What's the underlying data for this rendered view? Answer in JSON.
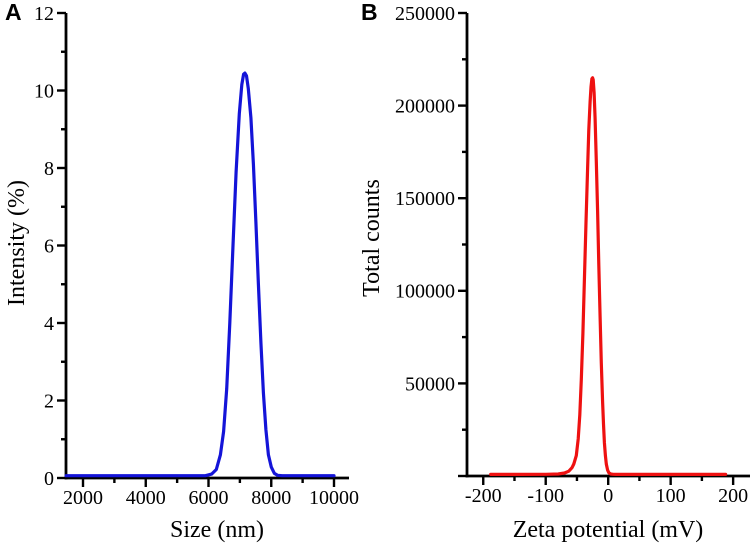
{
  "figure": {
    "background": "#ffffff",
    "axis_color": "#000000",
    "text_color": "#000000"
  },
  "chart_data": [
    {
      "type": "line",
      "panel_letter": "A",
      "title": "",
      "xlabel": "Size (nm)",
      "ylabel": "Intensity (%)",
      "line_color": "#1414d8",
      "xlim": [
        1458,
        10478
      ],
      "ylim": [
        0,
        12
      ],
      "x_major_ticks": [
        2000,
        4000,
        6000,
        8000,
        10000
      ],
      "x_major_labels": [
        "2000",
        "4000",
        "6000",
        "8000",
        "10000"
      ],
      "x_minor_ticks": [
        3000,
        5000,
        7000,
        9000
      ],
      "y_major_ticks": [
        0,
        2,
        4,
        6,
        8,
        10,
        12
      ],
      "y_major_labels": [
        "0",
        "2",
        "4",
        "6",
        "8",
        "10",
        "12"
      ],
      "y_minor_ticks": [
        1,
        3,
        5,
        7,
        9,
        11
      ],
      "grid": false,
      "legend": "none",
      "peak": {
        "x": 7160,
        "y": 10.45
      },
      "series": [
        {
          "name": "intensity-distribution",
          "x": [
            1460,
            5900,
            6100,
            6250,
            6380,
            6480,
            6580,
            6680,
            6780,
            6880,
            6980,
            7060,
            7120,
            7160,
            7210,
            7270,
            7350,
            7430,
            7510,
            7590,
            7670,
            7750,
            7830,
            7910,
            8000,
            8100,
            8200,
            8350,
            10000
          ],
          "y": [
            0.06,
            0.06,
            0.1,
            0.22,
            0.6,
            1.2,
            2.3,
            4.0,
            6.0,
            7.9,
            9.4,
            10.15,
            10.42,
            10.45,
            10.38,
            10.05,
            9.3,
            8.1,
            6.6,
            5.0,
            3.5,
            2.2,
            1.25,
            0.6,
            0.28,
            0.12,
            0.07,
            0.06,
            0.06
          ]
        }
      ]
    },
    {
      "type": "line",
      "panel_letter": "B",
      "title": "",
      "xlabel": "Zeta potential (mV)",
      "ylabel": "Total counts",
      "line_color": "#ee1111",
      "xlim": [
        -226,
        227
      ],
      "ylim": [
        0,
        250000
      ],
      "x_major_ticks": [
        -200,
        -100,
        0,
        100,
        200
      ],
      "x_major_labels": [
        "-200",
        "-100",
        "0",
        "100",
        "200"
      ],
      "x_minor_ticks": [
        -150,
        -50,
        50,
        150
      ],
      "y_major_ticks": [
        0,
        50000,
        100000,
        150000,
        200000,
        250000
      ],
      "y_major_labels": [
        "",
        "50000",
        "100000",
        "150000",
        "200000",
        "250000"
      ],
      "y_minor_ticks": [
        25000,
        75000,
        125000,
        175000,
        225000
      ],
      "grid": false,
      "legend": "none",
      "peak": {
        "x": -25,
        "y": 215000
      },
      "series": [
        {
          "name": "zeta-potential-distribution",
          "x": [
            -188,
            -140,
            -100,
            -80,
            -70,
            -63,
            -58,
            -55,
            -51,
            -48,
            -45.5,
            -43,
            -40.5,
            -38,
            -35.5,
            -33,
            -31,
            -29,
            -27.5,
            -26,
            -25,
            -24,
            -22.5,
            -21,
            -19,
            -17,
            -15,
            -13,
            -11,
            -9,
            -7.5,
            -6,
            -4.5,
            -3,
            -1,
            1,
            4,
            8,
            12,
            188
          ],
          "y": [
            850,
            850,
            900,
            1100,
            1600,
            2600,
            4500,
            6500,
            11000,
            20000,
            33000,
            52000,
            77000,
            106000,
            137000,
            166000,
            187000,
            202000,
            210000,
            214500,
            215000,
            214000,
            207000,
            193000,
            170000,
            143000,
            114000,
            86000,
            61000,
            40000,
            28000,
            18000,
            11000,
            6500,
            3200,
            1800,
            1100,
            900,
            850,
            850
          ]
        }
      ]
    }
  ]
}
